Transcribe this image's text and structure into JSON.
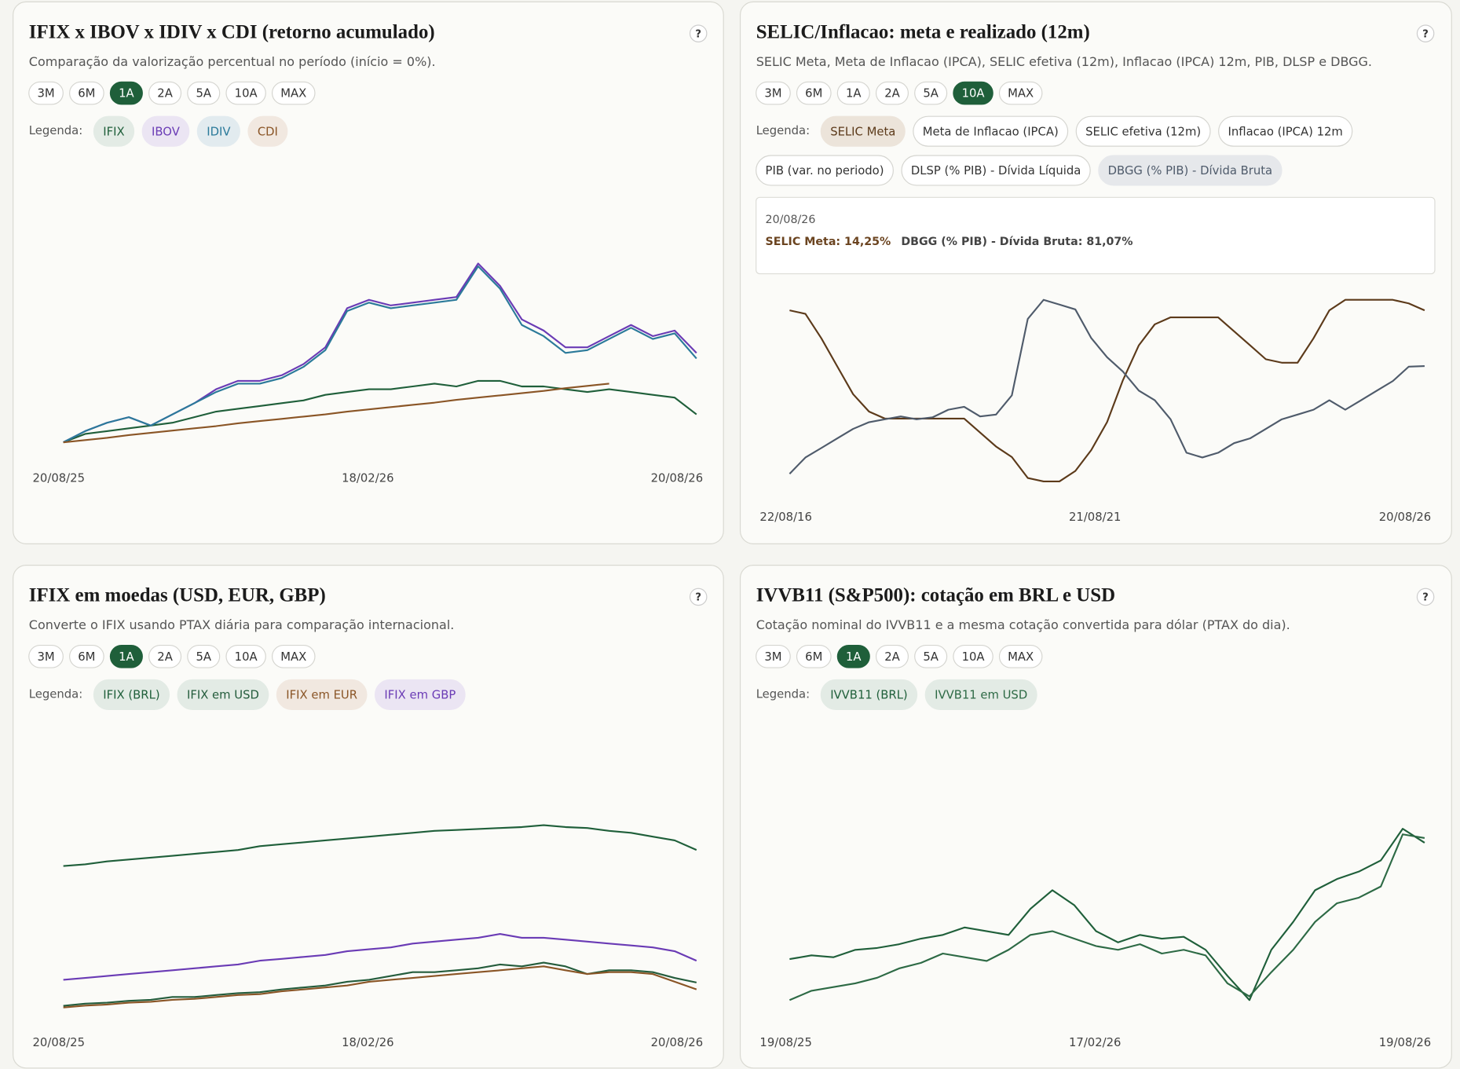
{
  "chart_data": [
    {
      "type": "line",
      "title": "IFIX x IBOV x IDIV x CDI (retorno acumulado)",
      "help": "?",
      "subtitle": "Comparação da valorização percentual no período (início = 0%).",
      "ranges": [
        "3M",
        "6M",
        "1A",
        "2A",
        "5A",
        "10A",
        "MAX"
      ],
      "active_range_index": 2,
      "legend_label": "Legenda:",
      "x_labels": [
        "20/08/25",
        "18/02/26",
        "20/08/26"
      ],
      "ylim": [
        0,
        33
      ],
      "series": [
        {
          "name": "IFIX",
          "color": "#1f5f3a",
          "bg": "#e3ebe5",
          "values": [
            0,
            1.5,
            2,
            2.5,
            3,
            3.5,
            4.5,
            5.5,
            6,
            6.5,
            7,
            7.5,
            8.5,
            9,
            9.5,
            9.5,
            10,
            10.5,
            10,
            11,
            11,
            10,
            10,
            9.5,
            9,
            9.5,
            9,
            8.5,
            8,
            5
          ]
        },
        {
          "name": "IBOV",
          "color": "#6a3bb5",
          "bg": "#ebe5f3",
          "values": [
            0,
            2,
            3.5,
            4.5,
            3,
            5,
            7,
            9.5,
            11,
            11,
            12,
            14,
            17,
            24,
            25.5,
            24.5,
            25,
            25.5,
            26,
            32,
            28,
            22,
            20,
            17,
            17,
            19,
            21,
            19,
            20,
            16
          ]
        },
        {
          "name": "IDIV",
          "color": "#2b7a9a",
          "bg": "#e2ebef",
          "values": [
            0,
            2,
            3.5,
            4.5,
            3,
            5,
            7,
            9,
            10.5,
            10.5,
            11.5,
            13.5,
            16.5,
            23.5,
            25,
            24,
            24.5,
            25,
            25.5,
            31.5,
            27.5,
            21,
            19,
            16,
            16.5,
            18.5,
            20.5,
            18.5,
            19.5,
            15
          ]
        },
        {
          "name": "CDI",
          "color": "#8a5526",
          "bg": "#f1e8e0",
          "values": [
            0,
            0.4,
            0.8,
            1.3,
            1.7,
            2.1,
            2.5,
            2.9,
            3.4,
            3.8,
            4.2,
            4.6,
            5,
            5.5,
            5.9,
            6.3,
            6.7,
            7.1,
            7.6,
            8,
            8.4,
            8.8,
            9.2,
            9.7,
            10.1,
            10.5,
            null,
            null,
            null,
            null
          ]
        }
      ]
    },
    {
      "type": "line",
      "title": "SELIC/Inflacao: meta e realizado (12m)",
      "help": "?",
      "subtitle": "SELIC Meta, Meta de Inflacao (IPCA), SELIC efetiva (12m), Inflacao (IPCA) 12m, PIB, DLSP e DBGG.",
      "ranges": [
        "3M",
        "6M",
        "1A",
        "2A",
        "5A",
        "10A",
        "MAX"
      ],
      "active_range_index": 5,
      "legend_label": "Legenda:",
      "x_labels": [
        "22/08/16",
        "21/08/21",
        "20/08/26"
      ],
      "ylim": [
        2,
        15
      ],
      "y2lim": [
        69,
        88
      ],
      "tooltip": {
        "date": "20/08/26",
        "items": [
          {
            "text": "SELIC Meta: 14,25%",
            "color": "#6b4420"
          },
          {
            "text": "DBGG (% PIB) - Dívida Bruta: 81,07%",
            "color": "#444444"
          }
        ]
      },
      "series": [
        {
          "name": "SELIC Meta",
          "color": "#5c3a1a",
          "bg": "#ece4da",
          "values": [
            14.25,
            14.0,
            12.25,
            10.25,
            8.25,
            7.0,
            6.5,
            6.5,
            6.5,
            6.5,
            6.5,
            6.5,
            5.5,
            4.5,
            3.75,
            2.25,
            2.0,
            2.0,
            2.75,
            4.25,
            6.25,
            9.25,
            11.75,
            13.25,
            13.75,
            13.75,
            13.75,
            13.75,
            12.75,
            11.75,
            10.75,
            10.5,
            10.5,
            12.25,
            14.25,
            15.0,
            15.0,
            15.0,
            15.0,
            14.75,
            14.25
          ]
        },
        {
          "name": "Meta de Inflacao (IPCA)",
          "active": false
        },
        {
          "name": "SELIC efetiva (12m)",
          "active": false
        },
        {
          "name": "Inflacao (IPCA) 12m",
          "active": false
        },
        {
          "name": "PIB (var. no periodo)",
          "active": false
        },
        {
          "name": "DLSP (% PIB) - Dívida Líquida",
          "active": false
        },
        {
          "name": "DBGG (% PIB) - Dívida Bruta",
          "color": "#4f5b6b",
          "bg": "#e6e8eb",
          "axis": "y2",
          "values": [
            69.8,
            71.5,
            72.5,
            73.5,
            74.5,
            75.2,
            75.5,
            75.8,
            75.5,
            75.7,
            76.5,
            76.8,
            75.8,
            76,
            78,
            86,
            88,
            87.5,
            87,
            84,
            82,
            80.5,
            78.5,
            77.5,
            75.5,
            72,
            71.5,
            72,
            73,
            73.5,
            74.5,
            75.5,
            76,
            76.5,
            77.5,
            76.5,
            77.5,
            78.5,
            79.5,
            81,
            81.07
          ]
        }
      ]
    },
    {
      "type": "line",
      "title": "IFIX em moedas (USD, EUR, GBP)",
      "help": "?",
      "subtitle": "Converte o IFIX usando PTAX diária para comparação internacional.",
      "ranges": [
        "3M",
        "6M",
        "1A",
        "2A",
        "5A",
        "10A",
        "MAX"
      ],
      "active_range_index": 2,
      "legend_label": "Legenda:",
      "x_labels": [
        "20/08/25",
        "18/02/26",
        "20/08/26"
      ],
      "ylim": [
        0,
        100
      ],
      "series": [
        {
          "name": "IFIX (BRL)",
          "color": "#1f5f3a",
          "bg": "#e3ebe5",
          "values": [
            75.6,
            76.5,
            78,
            79,
            80,
            81,
            82,
            83,
            84,
            86,
            87,
            88,
            89,
            90,
            91,
            92,
            93,
            94,
            94.5,
            95,
            95.5,
            96,
            97,
            96,
            95.5,
            94,
            93,
            91,
            89,
            84
          ]
        },
        {
          "name": "IFIX em USD",
          "color": "#245c3c",
          "bg": "#e3ebe5",
          "values": [
            2.4,
            3.5,
            4,
            5,
            5.5,
            7,
            7,
            8,
            9,
            9.5,
            11,
            12,
            13,
            15,
            16,
            18,
            20,
            20,
            21,
            22,
            24,
            23,
            25,
            23,
            19,
            21,
            21,
            20,
            17,
            14.6
          ]
        },
        {
          "name": "IFIX em EUR",
          "color": "#8a5526",
          "bg": "#f1e8e0",
          "values": [
            1.5,
            2.5,
            3,
            4,
            4.5,
            5.5,
            6,
            7,
            8,
            8.5,
            10,
            11,
            12,
            13,
            15,
            16,
            17,
            18,
            19,
            20,
            21,
            22,
            23,
            21,
            19,
            20,
            20,
            19,
            15,
            11
          ]
        },
        {
          "name": "IFIX em GBP",
          "color": "#6a3bb5",
          "bg": "#ebe5f3",
          "values": [
            16,
            17,
            18,
            19,
            20,
            21,
            22,
            23,
            24,
            26,
            27,
            28,
            29,
            31,
            32,
            33,
            35,
            36,
            37,
            38,
            40,
            38,
            38,
            37,
            36,
            35,
            34,
            33,
            31,
            26
          ]
        }
      ]
    },
    {
      "type": "line",
      "title": "IVVB11 (S&P500): cotação em BRL e USD",
      "help": "?",
      "subtitle": "Cotação nominal do IVVB11 e a mesma cotação convertida para dólar (PTAX do dia).",
      "ranges": [
        "3M",
        "6M",
        "1A",
        "2A",
        "5A",
        "10A",
        "MAX"
      ],
      "active_range_index": 2,
      "legend_label": "Legenda:",
      "x_labels": [
        "19/08/25",
        "17/02/26",
        "19/08/26"
      ],
      "ylim": [
        0,
        100
      ],
      "series": [
        {
          "name": "IVVB11 (BRL)",
          "color": "#1f5f3a",
          "bg": "#e3ebe5",
          "values": [
            25,
            27,
            26,
            30,
            31,
            33,
            36,
            38,
            42,
            40,
            38,
            52,
            62,
            54,
            40,
            34,
            38,
            36,
            37,
            30,
            16,
            3,
            30,
            45,
            62,
            68,
            72,
            78,
            95,
            87.5
          ]
        },
        {
          "name": "IVVB11 em USD",
          "color": "#2d6a45",
          "bg": "#e3ebe5",
          "values": [
            3,
            8,
            10,
            12,
            15,
            20,
            23,
            28,
            26,
            24,
            30,
            38,
            40,
            36,
            32,
            30,
            33,
            28,
            30,
            27,
            12,
            5,
            18,
            30,
            45,
            55,
            58,
            64,
            92,
            90
          ]
        }
      ]
    }
  ]
}
